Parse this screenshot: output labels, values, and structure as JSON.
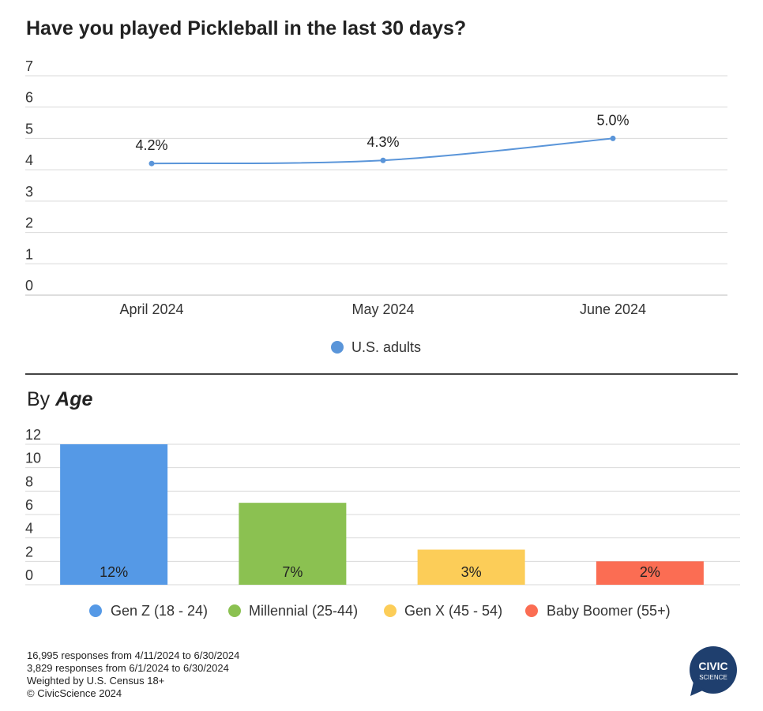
{
  "title": "Have you played Pickleball in the last 30 days?",
  "subtitle": {
    "prefix": "By",
    "emphasis": "Age"
  },
  "colors": {
    "line": "#5a95d9",
    "gen_z": "#5599e6",
    "millennial": "#8bc151",
    "gen_x": "#fccd58",
    "boomer": "#fb6d53"
  },
  "chart_data": [
    {
      "type": "line",
      "categories": [
        "April 2024",
        "May 2024",
        "June 2024"
      ],
      "series": [
        {
          "name": "U.S. adults",
          "values": [
            4.2,
            4.3,
            5.0
          ],
          "labels": [
            "4.2%",
            "4.3%",
            "5.0%"
          ]
        }
      ],
      "ylim": [
        0,
        7
      ],
      "yticks": [
        0,
        1,
        2,
        3,
        4,
        5,
        6,
        7
      ],
      "grid": true,
      "legend": "bottom-center"
    },
    {
      "type": "bar",
      "categories": [
        "Gen Z (18 - 24)",
        "Millennial (25-44)",
        "Gen X (45 - 54)",
        "Baby Boomer (55+)"
      ],
      "values": [
        12,
        7,
        3,
        2
      ],
      "labels": [
        "12%",
        "7%",
        "3%",
        "2%"
      ],
      "ylim": [
        0,
        12
      ],
      "yticks": [
        0,
        2,
        4,
        6,
        8,
        10,
        12
      ],
      "grid": true,
      "legend": "bottom-center"
    }
  ],
  "footnotes": [
    "16,995 responses from 4/11/2024 to 6/30/2024",
    "3,829 responses from 6/1/2024 to 6/30/2024",
    "Weighted by U.S. Census 18+",
    "© CivicScience 2024"
  ],
  "logo": {
    "line1": "CIVIC",
    "line2": "SCIENCE"
  }
}
